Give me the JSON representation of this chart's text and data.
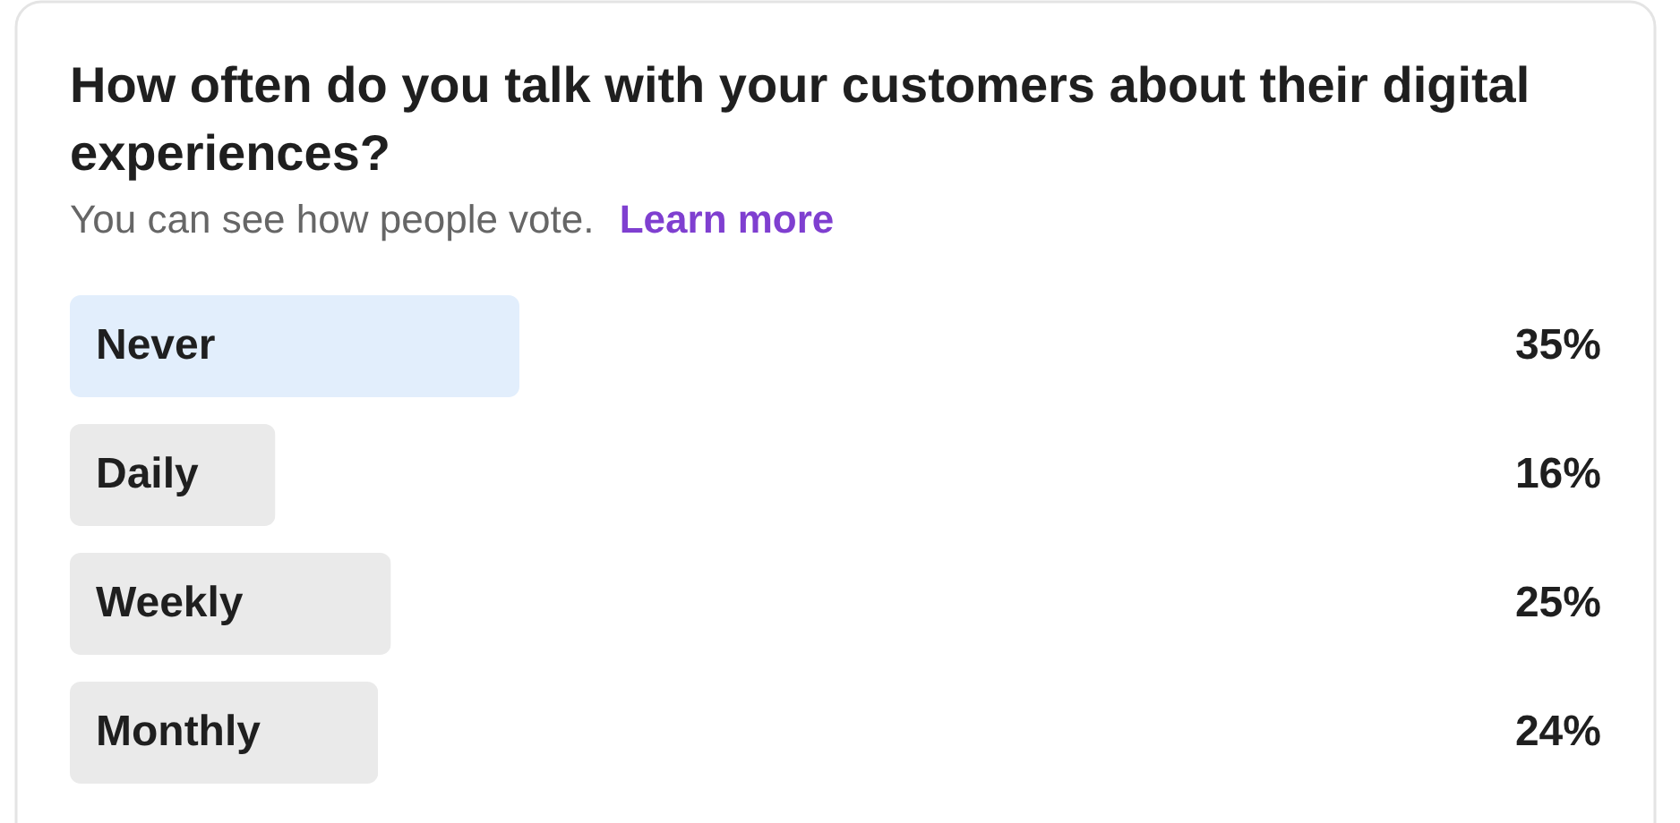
{
  "chart_data": {
    "type": "bar",
    "orientation": "horizontal",
    "title": "How often do you talk with your customers about their digital experiences?",
    "subtitle": "You can see how people vote.",
    "annotations": [
      "Learn more"
    ],
    "categories": [
      "Never",
      "Daily",
      "Weekly",
      "Monthly"
    ],
    "values": [
      35,
      16,
      25,
      24
    ],
    "colors": [
      "#e2eefc",
      "#eaeaea",
      "#eaeaea",
      "#eaeaea"
    ],
    "value_labels": [
      "35%",
      "16%",
      "25%",
      "24%"
    ],
    "tick_labels": "y"
  }
}
